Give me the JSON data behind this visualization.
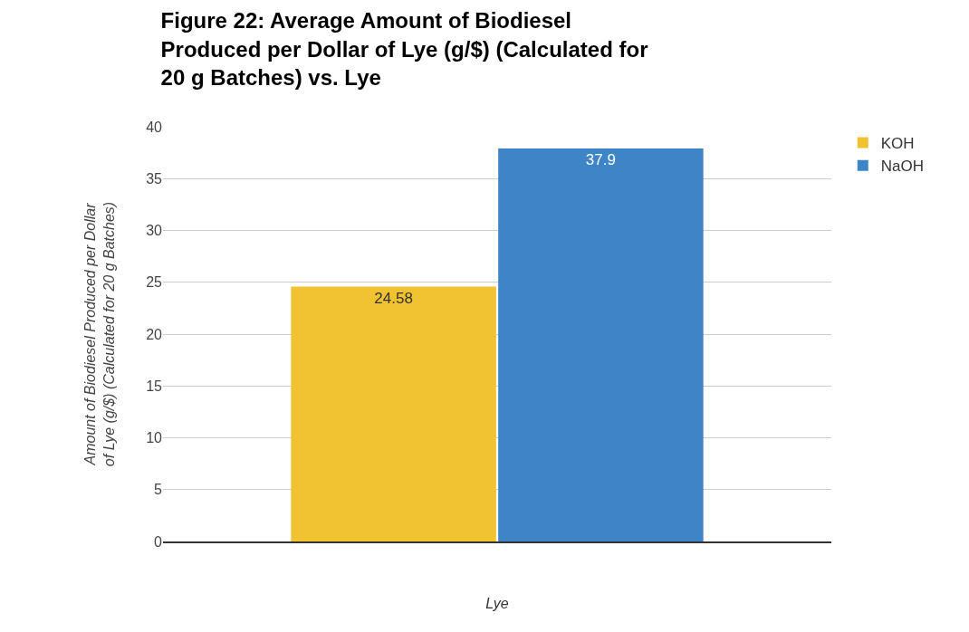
{
  "chart_data": {
    "type": "bar",
    "title": "Figure 22: Average Amount of Biodiesel\nProduced per Dollar of Lye (g/$) (Calculated for\n20 g Batches) vs. Lye",
    "xlabel": "Lye",
    "ylabel": "Amount of Biodiesel Produced per Dollar\nof Lye (g/$) (Calculated for 20 g Batches)",
    "categories": [
      null
    ],
    "series": [
      {
        "name": "KOH",
        "color": "#f1c232",
        "values": [
          24.58
        ]
      },
      {
        "name": "NaOH",
        "color": "#3d85c6",
        "values": [
          37.9
        ]
      }
    ],
    "ylim": [
      0,
      40
    ],
    "yticks": [
      0,
      5,
      10,
      15,
      20,
      25,
      30,
      35,
      40
    ],
    "grid": "y",
    "legend": "top right",
    "data_labels": true
  }
}
